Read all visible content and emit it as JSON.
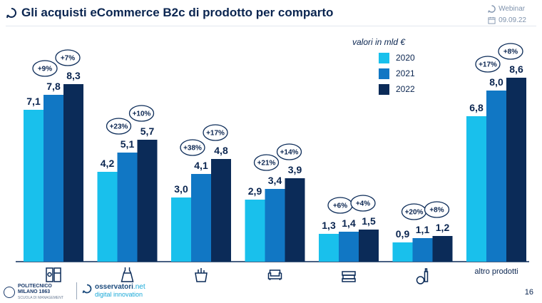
{
  "header": {
    "title": "Gli acquisti eCommerce B2c di prodotto per comparto",
    "webinar_label": "Webinar",
    "date": "09.09.22"
  },
  "legend": {
    "title": "valori in mld €"
  },
  "footer": {
    "polimi_line1": "POLITECNICO",
    "polimi_line2": "MILANO 1863",
    "polimi_line3": "SCUOLA DI MANAGEMENT",
    "osservatori_a": "osservatori",
    "osservatori_b": ".net",
    "osservatori_c": "digital innovation",
    "page_number": "16"
  },
  "colors": {
    "s2020": "#19c0ec",
    "s2021": "#1177c4",
    "s2022": "#0b2b58",
    "axis": "#0b2b58",
    "text": "#0a2550"
  },
  "chart_data": {
    "type": "bar",
    "title": "Gli acquisti eCommerce B2c di prodotto per comparto",
    "ylabel": "valori in mld €",
    "categories": [
      {
        "icon": "appliances-icon",
        "label": ""
      },
      {
        "icon": "dress-icon",
        "label": ""
      },
      {
        "icon": "grocery-bag-icon",
        "label": ""
      },
      {
        "icon": "sofa-icon",
        "label": ""
      },
      {
        "icon": "books-icon",
        "label": ""
      },
      {
        "icon": "cosmetics-icon",
        "label": ""
      },
      {
        "icon": "",
        "label": "altro prodotti"
      }
    ],
    "series": [
      {
        "name": "2020",
        "values": [
          7.1,
          4.2,
          3.0,
          2.9,
          1.3,
          0.9,
          6.8
        ]
      },
      {
        "name": "2021",
        "values": [
          7.8,
          5.1,
          4.1,
          3.4,
          1.4,
          1.1,
          8.0
        ]
      },
      {
        "name": "2022",
        "values": [
          8.3,
          5.7,
          4.8,
          3.9,
          1.5,
          1.2,
          8.6
        ]
      }
    ],
    "value_labels": [
      [
        "7,1",
        "7,8",
        "8,3"
      ],
      [
        "4,2",
        "5,1",
        "5,7"
      ],
      [
        "3,0",
        "4,1",
        "4,8"
      ],
      [
        "2,9",
        "3,4",
        "3,9"
      ],
      [
        "1,3",
        "1,4",
        "1,5"
      ],
      [
        "0,9",
        "1,1",
        "1,2"
      ],
      [
        "6,8",
        "8,0",
        "8,6"
      ]
    ],
    "growth": [
      [
        "+9%",
        "+7%"
      ],
      [
        "+23%",
        "+10%"
      ],
      [
        "+38%",
        "+17%"
      ],
      [
        "+21%",
        "+14%"
      ],
      [
        "+6%",
        "+4%"
      ],
      [
        "+20%",
        "+8%"
      ],
      [
        "+17%",
        "+8%"
      ]
    ],
    "ylim": [
      0,
      8.6
    ],
    "grid": false,
    "legend_position": "top-right"
  }
}
